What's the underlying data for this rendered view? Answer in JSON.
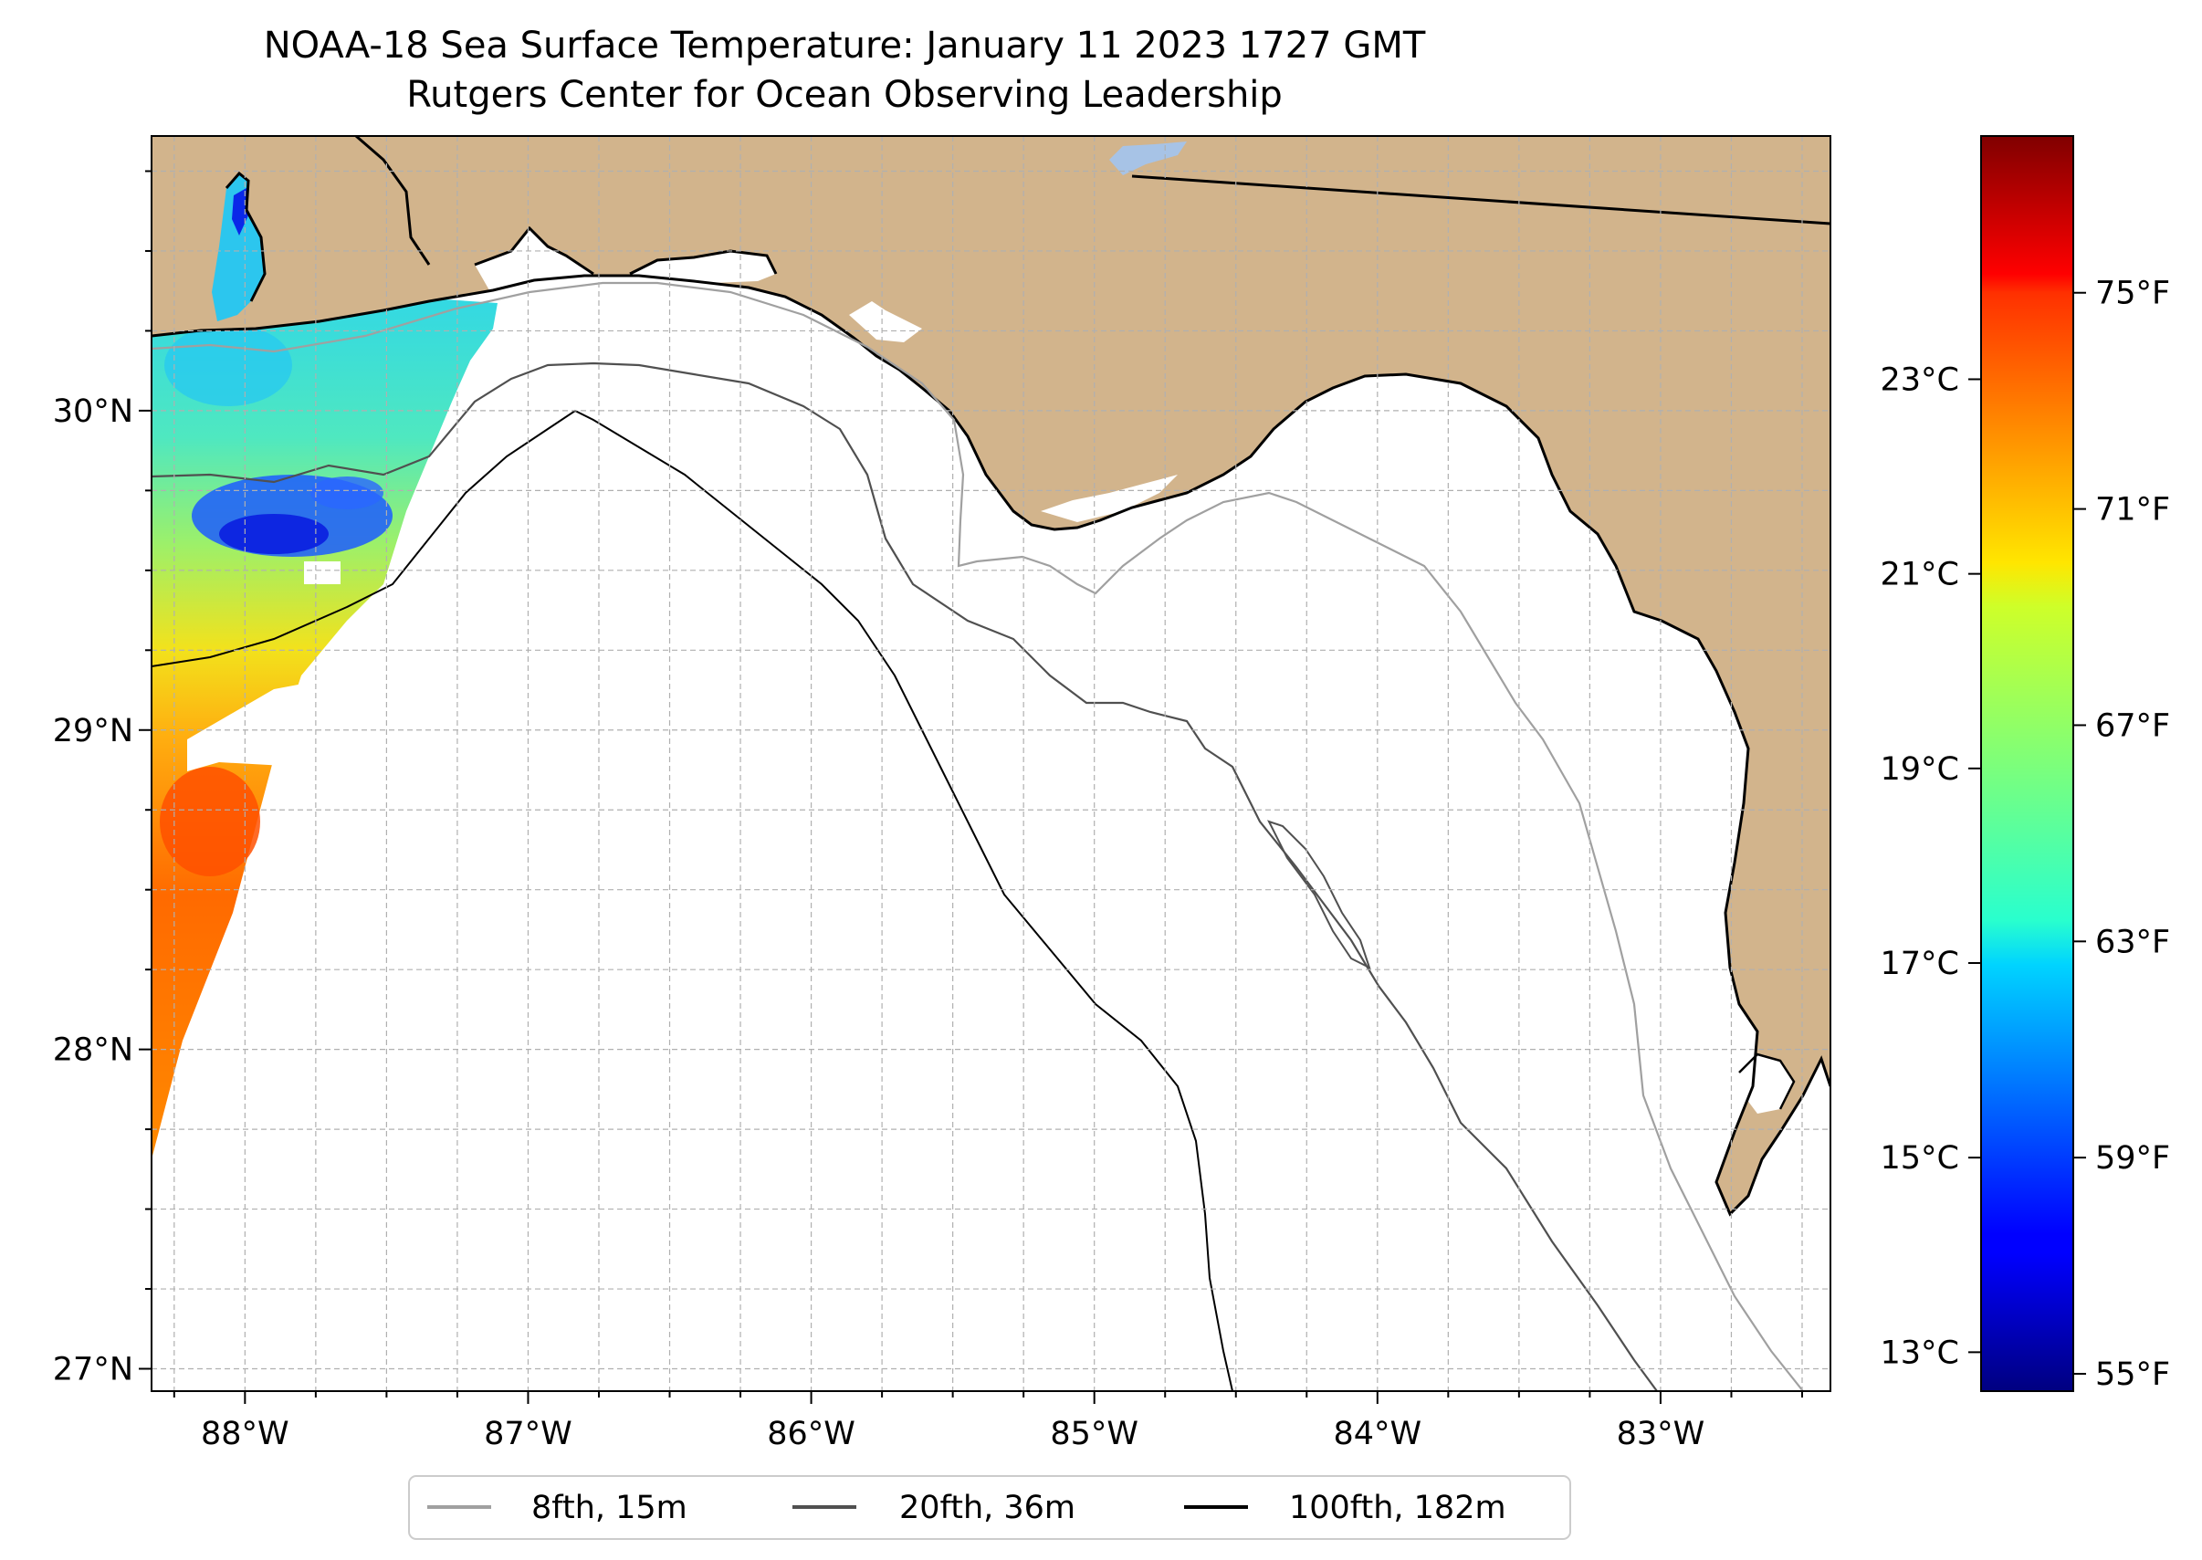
{
  "title": {
    "line1": "NOAA-18 Sea Surface Temperature: January 11 2023 1727 GMT",
    "line2": "Rutgers Center for Ocean Observing Leadership"
  },
  "map": {
    "lon_range": [
      -88.33,
      -82.4
    ],
    "lat_range": [
      26.93,
      30.86
    ],
    "land_color": "#d2b48c",
    "ocean_color": "#ffffff",
    "gridlines": true,
    "lon_ticks": [
      {
        "value": -88,
        "label": "88°W"
      },
      {
        "value": -87,
        "label": "87°W"
      },
      {
        "value": -86,
        "label": "86°W"
      },
      {
        "value": -85,
        "label": "85°W"
      },
      {
        "value": -84,
        "label": "84°W"
      },
      {
        "value": -83,
        "label": "83°W"
      }
    ],
    "lat_ticks": [
      {
        "value": 30,
        "label": "30°N"
      },
      {
        "value": 29,
        "label": "29°N"
      },
      {
        "value": 28,
        "label": "28°N"
      },
      {
        "value": 27,
        "label": "27°N"
      }
    ],
    "sst_coverage": {
      "description_region": "western edge, approx 88.33°W–87.2°W",
      "warmest_area": "south-west, approx 72–74°F",
      "coolest_area": "near 29.7°N 87.8°W, approx 57–59°F"
    }
  },
  "legend": {
    "placement": "bottom-center",
    "entries": [
      {
        "label": "8fth, 15m",
        "color": "#a0a0a0"
      },
      {
        "label": "20fth, 36m",
        "color": "#505050"
      },
      {
        "label": "100fth, 182m",
        "color": "#000000"
      }
    ]
  },
  "colorbar": {
    "colormap": "jet",
    "range_c": [
      12.6,
      25.5
    ],
    "celsius_ticks": [
      {
        "value": 13,
        "label": "13°C"
      },
      {
        "value": 15,
        "label": "15°C"
      },
      {
        "value": 17,
        "label": "17°C"
      },
      {
        "value": 19,
        "label": "19°C"
      },
      {
        "value": 21,
        "label": "21°C"
      },
      {
        "value": 23,
        "label": "23°C"
      }
    ],
    "fahrenheit_ticks": [
      {
        "value": 55,
        "label": "55°F"
      },
      {
        "value": 59,
        "label": "59°F"
      },
      {
        "value": 63,
        "label": "63°F"
      },
      {
        "value": 67,
        "label": "67°F"
      },
      {
        "value": 71,
        "label": "71°F"
      },
      {
        "value": 75,
        "label": "75°F"
      }
    ]
  }
}
